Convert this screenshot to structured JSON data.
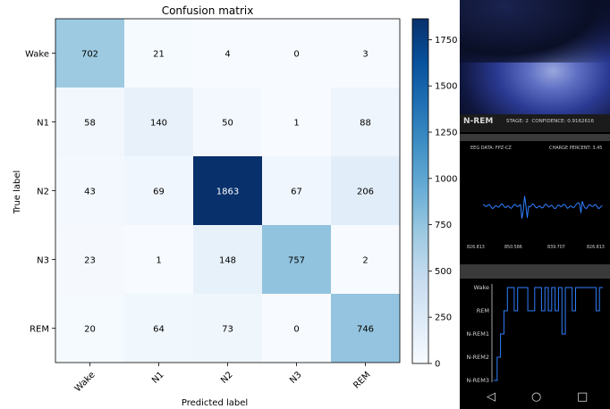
{
  "chart_data": {
    "type": "heatmap",
    "title": "Confusion matrix",
    "xlabel": "Predicted label",
    "ylabel": "True label",
    "classes": [
      "Wake",
      "N1",
      "N2",
      "N3",
      "REM"
    ],
    "matrix": [
      [
        702,
        21,
        4,
        0,
        3
      ],
      [
        58,
        140,
        50,
        1,
        88
      ],
      [
        43,
        69,
        1863,
        67,
        206
      ],
      [
        23,
        1,
        148,
        757,
        2
      ],
      [
        20,
        64,
        73,
        0,
        746
      ]
    ],
    "colorbar": {
      "ticks": [
        0,
        250,
        500,
        750,
        1000,
        1250,
        1500,
        1750
      ],
      "vmin": 0,
      "vmax": 1863,
      "colormap": "Blues"
    },
    "colors": {
      "low": "#f7fbff",
      "high": "#08306b",
      "text_dark": "#000000",
      "text_light": "#ffffff"
    }
  },
  "phone": {
    "stage_title": "N-REM",
    "stage_label": "STAGE: 2",
    "confidence_label": "CONFIDENCE: 0.9162616",
    "eeg_label": "EEG DATA: FPZ-CZ",
    "charge_label": "CHARGE PERCENT: 3.45",
    "eeg_ticks": [
      "826.813",
      "850.586",
      "839.707",
      "826.813"
    ],
    "hypnogram_labels": [
      "Wake",
      "REM",
      "N-REM1",
      "N-REM2",
      "N-REM3"
    ],
    "line_color": "#2f7fff",
    "nav_icons": [
      "back-icon",
      "home-icon",
      "recents-icon"
    ],
    "nav_glyphs": [
      "◁",
      "○",
      "□"
    ]
  }
}
